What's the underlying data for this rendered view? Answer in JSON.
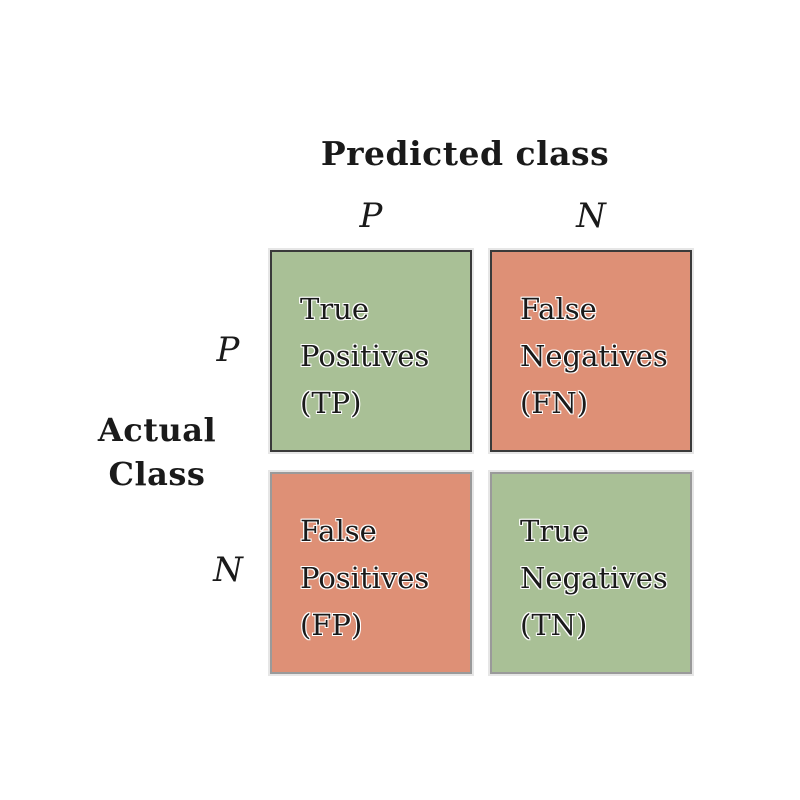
{
  "predicted_title": "Predicted class",
  "actual_title_line1": "Actual",
  "actual_title_line2": "Class",
  "columns": [
    "P",
    "N"
  ],
  "rows": [
    "P",
    "N"
  ],
  "colors": {
    "true_cell": "#a9c096",
    "false_cell": "#de9076"
  },
  "cells": {
    "tp": {
      "line1": "True",
      "line2": "Positives",
      "line3": "(TP)"
    },
    "fn": {
      "line1": "False",
      "line2": "Negatives",
      "line3": "(FN)"
    },
    "fp": {
      "line1": "False",
      "line2": "Positives",
      "line3": "(FP)"
    },
    "tn": {
      "line1": "True",
      "line2": "Negatives",
      "line3": "(TN)"
    }
  }
}
